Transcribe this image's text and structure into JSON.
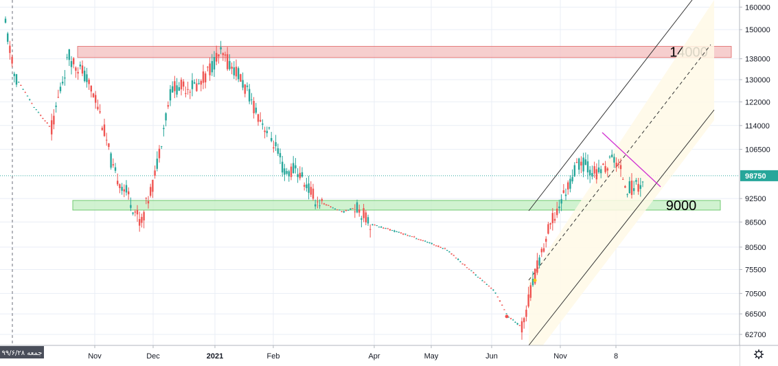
{
  "chart_data": {
    "type": "candlestick",
    "y_axis": {
      "ticks": [
        62700,
        66500,
        70500,
        75500,
        80500,
        86500,
        92500,
        98750,
        106500,
        114000,
        122000,
        130000,
        138000,
        150000,
        160000
      ],
      "ylim": [
        61000,
        162000
      ],
      "scale": "log"
    },
    "x_axis": {
      "labels": [
        {
          "text": "Nov",
          "bold": false
        },
        {
          "text": "Dec",
          "bold": false
        },
        {
          "text": "2021",
          "bold": true
        },
        {
          "text": "Feb",
          "bold": false
        },
        {
          "text": "Apr",
          "bold": false
        },
        {
          "text": "May",
          "bold": false
        },
        {
          "text": "Jun",
          "bold": false
        },
        {
          "text": "Nov",
          "bold": false
        },
        {
          "text": "8",
          "bold": false
        }
      ]
    },
    "current_price": {
      "value": 98750,
      "label": "98750",
      "color": "#26a69a"
    },
    "cursor_date_label": "جمعه ۹۹/۶/۲۸",
    "zones": [
      {
        "label": "14000",
        "low": 138500,
        "high": 143000,
        "color": "#f5c6c6",
        "border": "#e06666"
      },
      {
        "label": "9000",
        "low": 89500,
        "high": 92000,
        "color": "#c8f0c8",
        "border": "#58c058"
      }
    ],
    "colors": {
      "up": "#26a69a",
      "down": "#ef5350",
      "grid": "#e9eef6",
      "channel": "#333333",
      "channel_fill": "#fff9e6",
      "trend": "#d236d2"
    },
    "settings_icon": "gear-icon"
  }
}
